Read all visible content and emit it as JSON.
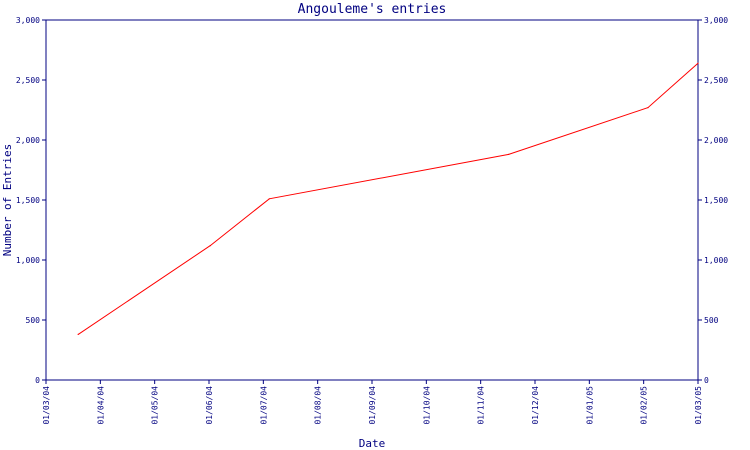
{
  "chart_data": {
    "type": "line",
    "title": "Angouleme's entries",
    "xlabel": "Date",
    "ylabel": "Number of Entries",
    "x_ticks": [
      "01/03/04",
      "01/04/04",
      "01/05/04",
      "01/06/04",
      "01/07/04",
      "01/08/04",
      "01/09/04",
      "01/10/04",
      "01/11/04",
      "01/12/04",
      "01/01/05",
      "01/02/05",
      "01/03/05"
    ],
    "y_ticks": [
      "0",
      "500",
      "1,000",
      "1,500",
      "2,000",
      "2,500",
      "3,000"
    ],
    "ylim": [
      0,
      3000
    ],
    "xlim": [
      "2004-03-01",
      "2005-03-01"
    ],
    "grid": false,
    "secondary_y_axis": true,
    "colors": {
      "axis": "#000080",
      "line": "#ff0000",
      "text": "#000080"
    },
    "series": [
      {
        "x": [
          "2004-03-19",
          "2004-06-01",
          "2004-07-04",
          "2004-11-15",
          "2005-02-01",
          "2005-03-01"
        ],
        "y": [
          380,
          1120,
          1510,
          1880,
          2270,
          2640
        ]
      }
    ]
  }
}
